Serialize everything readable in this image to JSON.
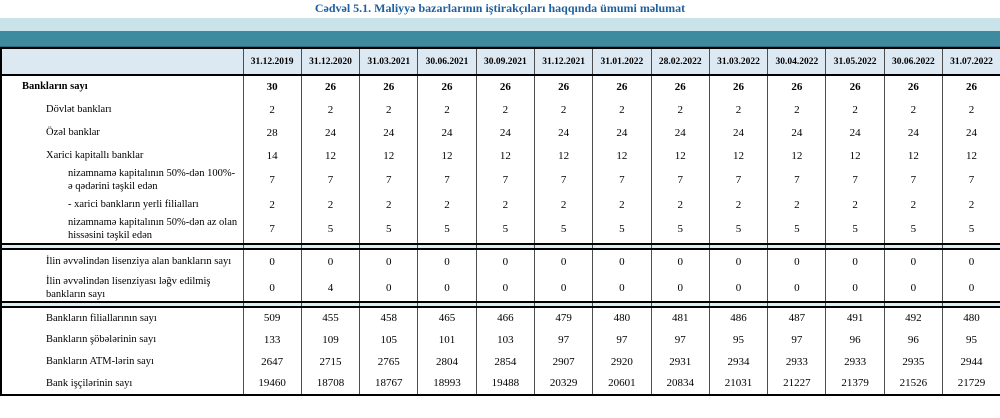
{
  "title": "Cədvəl 5.1. Maliyyə bazarlarının iştirakçıları haqqında ümumi məlumat",
  "colors": {
    "title_text": "#1e5f9e",
    "band_light": "#c8e3ea",
    "band_teal": "#3e8ba0",
    "header_row_bg": "#dde9f2",
    "separator_bg": "#d9edf4",
    "border": "#000000"
  },
  "columns": [
    "31.12.2019",
    "31.12.2020",
    "31.03.2021",
    "30.06.2021",
    "30.09.2021",
    "31.12.2021",
    "31.01.2022",
    "28.02.2022",
    "31.03.2022",
    "30.04.2022",
    "31.05.2022",
    "30.06.2022",
    "31.07.2022"
  ],
  "sections": [
    {
      "rows": [
        {
          "label": "Bankların sayı",
          "indent": 0,
          "bold": true,
          "values": [
            30,
            26,
            26,
            26,
            26,
            26,
            26,
            26,
            26,
            26,
            26,
            26,
            26
          ]
        },
        {
          "label": "Dövlət bankları",
          "indent": 1,
          "bold": false,
          "values": [
            2,
            2,
            2,
            2,
            2,
            2,
            2,
            2,
            2,
            2,
            2,
            2,
            2
          ]
        },
        {
          "label": "Özəl banklar",
          "indent": 1,
          "bold": false,
          "values": [
            28,
            24,
            24,
            24,
            24,
            24,
            24,
            24,
            24,
            24,
            24,
            24,
            24
          ]
        },
        {
          "label": "Xarici kapitallı banklar",
          "indent": 1,
          "bold": false,
          "values": [
            14,
            12,
            12,
            12,
            12,
            12,
            12,
            12,
            12,
            12,
            12,
            12,
            12
          ]
        },
        {
          "label": "nizamnamə kapitalının 50%-dən 100%-ə qədərini təşkil edən",
          "indent": 2,
          "bold": false,
          "values": [
            7,
            7,
            7,
            7,
            7,
            7,
            7,
            7,
            7,
            7,
            7,
            7,
            7
          ]
        },
        {
          "label": "- xarici bankların yerli filialları",
          "indent": 2,
          "bold": false,
          "values": [
            2,
            2,
            2,
            2,
            2,
            2,
            2,
            2,
            2,
            2,
            2,
            2,
            2
          ]
        },
        {
          "label": "nizamnamə kapitalının 50%-dən az olan hissəsini təşkil edən",
          "indent": 2,
          "bold": false,
          "values": [
            7,
            5,
            5,
            5,
            5,
            5,
            5,
            5,
            5,
            5,
            5,
            5,
            5
          ]
        }
      ]
    },
    {
      "rows": [
        {
          "label": "İlin əvvəlindən lisenziya alan bankların sayı",
          "indent": 1,
          "bold": false,
          "values": [
            0,
            0,
            0,
            0,
            0,
            0,
            0,
            0,
            0,
            0,
            0,
            0,
            0
          ]
        },
        {
          "label": "İlin əvvəlindən lisenziyası ləğv edilmiş bankların sayı",
          "indent": 1,
          "bold": false,
          "values": [
            0,
            4,
            0,
            0,
            0,
            0,
            0,
            0,
            0,
            0,
            0,
            0,
            0
          ]
        }
      ]
    },
    {
      "rows": [
        {
          "label": "Bankların filiallarının sayı",
          "indent": 1,
          "bold": false,
          "values": [
            509,
            455,
            458,
            465,
            466,
            479,
            480,
            481,
            486,
            487,
            491,
            492,
            480
          ]
        },
        {
          "label": "Bankların şöbələrinin sayı",
          "indent": 1,
          "bold": false,
          "values": [
            133,
            109,
            105,
            101,
            103,
            97,
            97,
            97,
            95,
            97,
            96,
            96,
            95
          ]
        },
        {
          "label": "Bankların ATM-lərin sayı",
          "indent": 1,
          "bold": false,
          "values": [
            2647,
            2715,
            2765,
            2804,
            2854,
            2907,
            2920,
            2931,
            2934,
            2933,
            2933,
            2935,
            2944
          ]
        },
        {
          "label": "Bank işçilərinin sayı",
          "indent": 1,
          "bold": false,
          "values": [
            19460,
            18708,
            18767,
            18993,
            19488,
            20329,
            20601,
            20834,
            21031,
            21227,
            21379,
            21526,
            21729
          ]
        }
      ]
    }
  ]
}
